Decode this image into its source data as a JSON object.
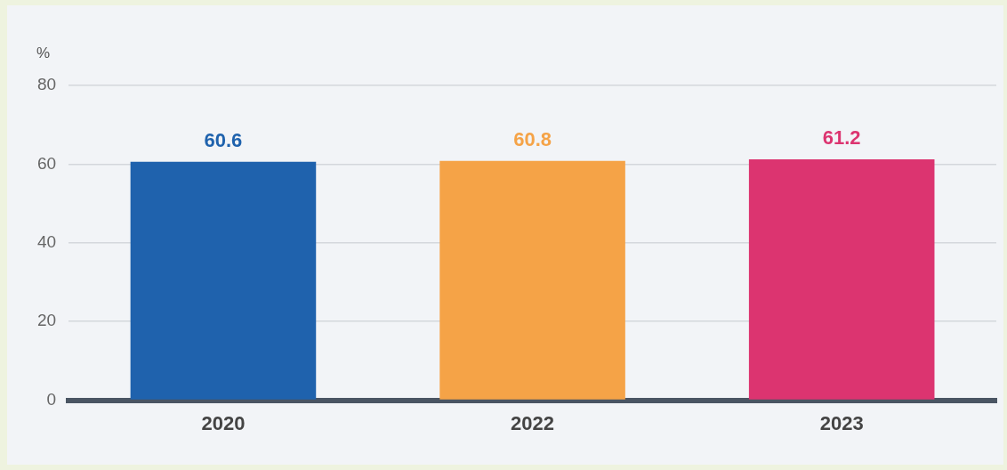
{
  "chart_data": {
    "type": "bar",
    "ylabel": "%",
    "categories": [
      "2020",
      "2022",
      "2023"
    ],
    "values": [
      60.6,
      60.8,
      61.2
    ],
    "colors": [
      "#1f62ad",
      "#f5a347",
      "#dc3470"
    ],
    "ylim": [
      0,
      80
    ],
    "yticks": [
      0,
      20,
      40,
      60,
      80
    ],
    "grid": "y",
    "legend": false,
    "data_labels": true
  }
}
